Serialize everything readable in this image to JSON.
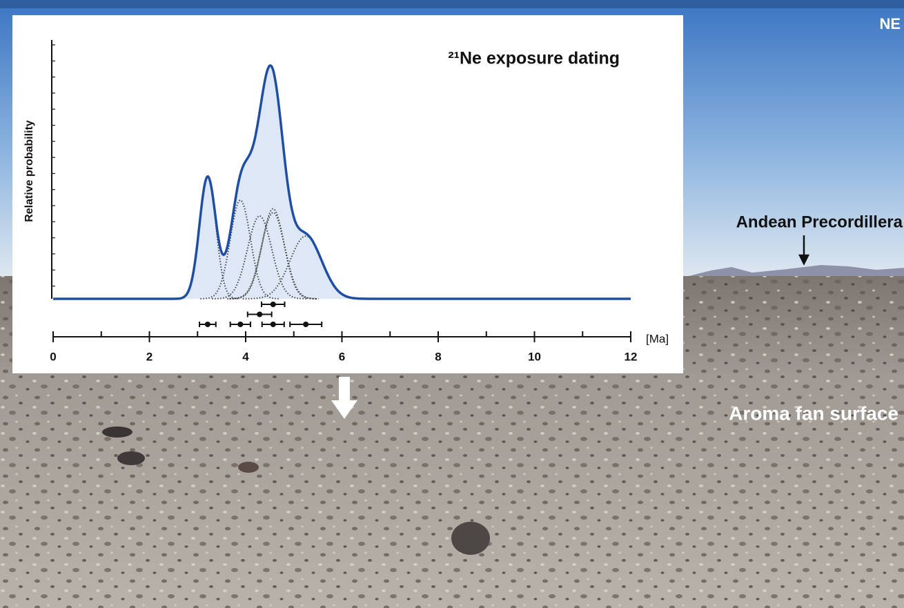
{
  "chart_data": {
    "type": "density",
    "title": "²¹Ne exposure dating",
    "y_label": "Relative probability",
    "x_unit": "[Ma]",
    "series": [
      {
        "values": [
          3.21,
          3.89,
          4.57,
          5.25,
          4.29,
          4.57
        ],
        "errors": [
          0.17,
          0.21,
          0.23,
          0.33,
          0.25,
          0.24
        ],
        "color": "#1f4ea3",
        "fill": "#dde7f6",
        "component_color": "#444444"
      }
    ],
    "xlim": [
      0,
      12
    ],
    "xticks": [
      0,
      2,
      4,
      6,
      8,
      10,
      12
    ],
    "xminorticks": [
      1,
      3,
      5,
      7,
      9,
      11
    ]
  },
  "photo_labels": {
    "direction": "NE",
    "mountains": "Andean Precordillera",
    "surface": "Aroma fan surface"
  }
}
